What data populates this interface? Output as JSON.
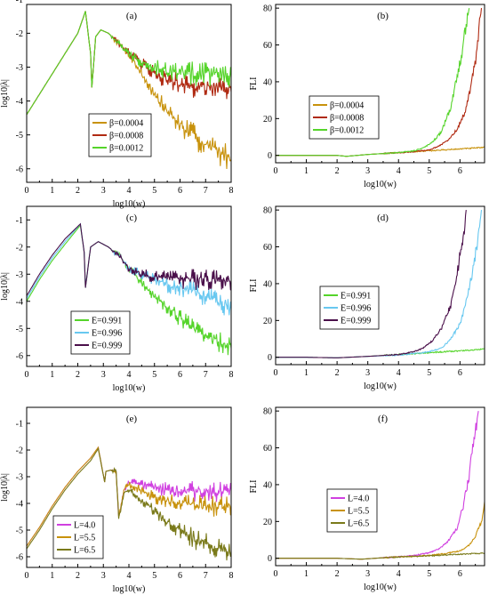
{
  "chart_data": [
    {
      "type": "line",
      "panel_label": "(a)",
      "xlabel": "log10(w)",
      "ylabel": "log10|λ|",
      "xlim": [
        0,
        8
      ],
      "ylim": [
        -6.4,
        -1.15
      ],
      "xticks": [
        "0",
        "1",
        "2",
        "3",
        "4",
        "5",
        "6",
        "7",
        "8"
      ],
      "yticks": [
        "-1",
        "-2",
        "-3",
        "-4",
        "-5",
        "-6"
      ],
      "legend_position": "bottom-center",
      "series": [
        {
          "name": "β=0.0004",
          "color": "#c8920c",
          "x": [
            0,
            0.5,
            1,
            1.5,
            2,
            2.3,
            2.5,
            2.55,
            2.7,
            2.9,
            3.2,
            3.6,
            4,
            4.5,
            5,
            5.5,
            6,
            6.5,
            7,
            7.5,
            8
          ],
          "y": [
            -4.4,
            -3.8,
            -3.2,
            -2.6,
            -2,
            -1.35,
            -2.6,
            -3.6,
            -2.1,
            -1.9,
            -2,
            -2.3,
            -2.6,
            -3.2,
            -3.8,
            -4.3,
            -4.7,
            -5,
            -5.3,
            -5.5,
            -5.7
          ]
        },
        {
          "name": "β=0.0008",
          "color": "#b02a12",
          "x": [
            0,
            0.5,
            1,
            1.5,
            2,
            2.3,
            2.5,
            2.55,
            2.7,
            2.9,
            3.2,
            3.6,
            4,
            4.5,
            5,
            5.5,
            6,
            6.5,
            7,
            7.5,
            8
          ],
          "y": [
            -4.4,
            -3.8,
            -3.2,
            -2.6,
            -2,
            -1.35,
            -2.6,
            -3.6,
            -2.1,
            -1.9,
            -2,
            -2.3,
            -2.6,
            -2.9,
            -3.2,
            -3.4,
            -3.5,
            -3.55,
            -3.6,
            -3.62,
            -3.65
          ]
        },
        {
          "name": "β=0.0012",
          "color": "#55d42a",
          "x": [
            0,
            0.5,
            1,
            1.5,
            2,
            2.3,
            2.5,
            2.55,
            2.7,
            2.9,
            3.2,
            3.6,
            4,
            4.5,
            5,
            5.5,
            6,
            6.5,
            7,
            7.5,
            8
          ],
          "y": [
            -4.4,
            -3.8,
            -3.2,
            -2.6,
            -2,
            -1.35,
            -2.6,
            -3.6,
            -2.1,
            -1.9,
            -2,
            -2.3,
            -2.6,
            -2.85,
            -3,
            -3.1,
            -3.15,
            -3.18,
            -3.2,
            -3.22,
            -3.22
          ]
        }
      ]
    },
    {
      "type": "line",
      "panel_label": "(b)",
      "xlabel": "log10(w)",
      "ylabel": "FLI",
      "xlim": [
        0,
        6.8
      ],
      "ylim": [
        -4,
        82
      ],
      "xticks": [
        "0",
        "1",
        "2",
        "3",
        "4",
        "5",
        "6"
      ],
      "yticks": [
        "0",
        "20",
        "40",
        "60",
        "80"
      ],
      "legend_position": "center-left",
      "series": [
        {
          "name": "β=0.0004",
          "color": "#c8920c",
          "x": [
            0,
            1,
            2,
            2.3,
            3,
            4,
            5,
            5.5,
            6,
            6.5,
            6.8
          ],
          "y": [
            0,
            0,
            0,
            -0.5,
            0.5,
            1.5,
            2.5,
            3,
            3.5,
            4,
            4.5
          ]
        },
        {
          "name": "β=0.0008",
          "color": "#b02a12",
          "x": [
            0,
            1,
            2,
            2.3,
            3,
            4,
            4.5,
            5,
            5.3,
            5.6,
            5.9,
            6.2,
            6.5,
            6.7
          ],
          "y": [
            0,
            0,
            0,
            -0.5,
            0.5,
            1.5,
            2,
            3,
            5,
            8,
            14,
            25,
            50,
            80
          ]
        },
        {
          "name": "β=0.0012",
          "color": "#55d42a",
          "x": [
            0,
            1,
            2,
            2.3,
            3,
            4,
            4.5,
            4.8,
            5.1,
            5.4,
            5.7,
            6,
            6.3
          ],
          "y": [
            0,
            0,
            0,
            -0.5,
            0.5,
            1.5,
            2.5,
            4,
            7,
            13,
            26,
            50,
            80
          ]
        }
      ]
    },
    {
      "type": "line",
      "panel_label": "(c)",
      "xlabel": "log10(w)",
      "ylabel": "log10|λ|",
      "xlim": [
        0,
        8
      ],
      "ylim": [
        -6.4,
        -0.5
      ],
      "xticks": [
        "0",
        "1",
        "2",
        "3",
        "4",
        "5",
        "6",
        "7",
        "8"
      ],
      "yticks": [
        "-1",
        "-2",
        "-3",
        "-4",
        "-5",
        "-6"
      ],
      "legend_position": "bottom-center",
      "series": [
        {
          "name": "E=0.991",
          "color": "#55d42a",
          "x": [
            0,
            0.5,
            1,
            1.5,
            2.1,
            2.25,
            2.3,
            2.5,
            2.8,
            3.2,
            3.7,
            4,
            4.5,
            5,
            5.5,
            6,
            6.5,
            7,
            7.5,
            8
          ],
          "y": [
            -4,
            -3.2,
            -2.5,
            -1.9,
            -1.2,
            -2.2,
            -3.5,
            -2,
            -1.8,
            -2,
            -2.4,
            -2.8,
            -3.3,
            -3.8,
            -4.2,
            -4.6,
            -5,
            -5.3,
            -5.5,
            -5.7
          ]
        },
        {
          "name": "E=0.996",
          "color": "#68c8f0",
          "x": [
            0,
            0.5,
            1,
            1.5,
            2.1,
            2.25,
            2.3,
            2.5,
            2.8,
            3.2,
            3.7,
            4,
            4.5,
            5,
            5.5,
            6,
            6.5,
            7,
            7.5,
            8
          ],
          "y": [
            -3.9,
            -3.1,
            -2.4,
            -1.8,
            -1.15,
            -2.2,
            -3.5,
            -2,
            -1.8,
            -2,
            -2.4,
            -2.8,
            -3,
            -3.2,
            -3.4,
            -3.5,
            -3.6,
            -3.8,
            -4,
            -4.3
          ]
        },
        {
          "name": "E=0.999",
          "color": "#4a0f4a",
          "x": [
            0,
            0.5,
            1,
            1.5,
            2.1,
            2.25,
            2.3,
            2.5,
            2.8,
            3.2,
            3.7,
            4,
            4.5,
            5,
            5.5,
            6,
            6.5,
            7,
            7.5,
            8
          ],
          "y": [
            -3.8,
            -3,
            -2.3,
            -1.7,
            -1.15,
            -2.2,
            -3.5,
            -2,
            -1.8,
            -2,
            -2.4,
            -2.8,
            -3,
            -3.1,
            -3.15,
            -3.2,
            -3.2,
            -3.2,
            -3.2,
            -3.2
          ]
        }
      ]
    },
    {
      "type": "line",
      "panel_label": "(d)",
      "xlabel": "log10(w)",
      "ylabel": "FLI",
      "xlim": [
        0,
        6.8
      ],
      "ylim": [
        -4,
        82
      ],
      "xticks": [
        "0",
        "1",
        "2",
        "3",
        "4",
        "5",
        "6"
      ],
      "yticks": [
        "0",
        "20",
        "40",
        "60",
        "80"
      ],
      "legend_position": "center-left",
      "series": [
        {
          "name": "E=0.991",
          "color": "#55d42a",
          "x": [
            0,
            1,
            2,
            3,
            4,
            5,
            5.5,
            6,
            6.5,
            6.8
          ],
          "y": [
            0,
            0,
            -0.3,
            0.5,
            1.5,
            2.5,
            3,
            3.5,
            4,
            4.5
          ]
        },
        {
          "name": "E=0.996",
          "color": "#68c8f0",
          "x": [
            0,
            1,
            2,
            3,
            4,
            4.5,
            5,
            5.4,
            5.7,
            6,
            6.2,
            6.4,
            6.6,
            6.7
          ],
          "y": [
            0,
            0,
            -0.3,
            0.5,
            1.2,
            2,
            3,
            5,
            10,
            18,
            30,
            45,
            65,
            80
          ]
        },
        {
          "name": "E=0.999",
          "color": "#4a0f4a",
          "x": [
            0,
            1,
            2,
            3,
            4,
            4.5,
            4.8,
            5.1,
            5.4,
            5.7,
            5.9,
            6.1,
            6.2
          ],
          "y": [
            0,
            0,
            -0.3,
            0.5,
            1.5,
            3,
            5,
            9,
            16,
            28,
            45,
            65,
            80
          ]
        }
      ]
    },
    {
      "type": "line",
      "panel_label": "(e)",
      "xlabel": "log10(w)",
      "ylabel": "log10|λ|",
      "xlim": [
        0,
        8
      ],
      "ylim": [
        -6.4,
        -0.4
      ],
      "xticks": [
        "0",
        "1",
        "2",
        "3",
        "4",
        "5",
        "6",
        "7",
        "8"
      ],
      "yticks": [
        "-1",
        "-2",
        "-3",
        "-4",
        "-5",
        "-6"
      ],
      "legend_position": "bottom-left",
      "series": [
        {
          "name": "L=4.0",
          "color": "#d040e0",
          "x": [
            0,
            0.5,
            1,
            1.5,
            2,
            2.5,
            2.8,
            3.05,
            3.1,
            3.3,
            3.5,
            3.6,
            3.8,
            4,
            4.5,
            5,
            5.5,
            6,
            6.5,
            7,
            7.5,
            8
          ],
          "y": [
            -5.6,
            -4.9,
            -4.1,
            -3.4,
            -2.8,
            -2.3,
            -1.9,
            -3.2,
            -2.8,
            -2.75,
            -2.8,
            -4.5,
            -3.5,
            -3.2,
            -3.3,
            -3.4,
            -3.5,
            -3.55,
            -3.55,
            -3.55,
            -3.55,
            -3.55
          ]
        },
        {
          "name": "L=5.5",
          "color": "#c8920c",
          "x": [
            0,
            0.5,
            1,
            1.5,
            2,
            2.5,
            2.8,
            3.05,
            3.1,
            3.3,
            3.5,
            3.6,
            3.8,
            4,
            4.5,
            5,
            5.5,
            6,
            6.5,
            7,
            7.5,
            8
          ],
          "y": [
            -5.6,
            -4.9,
            -4.1,
            -3.4,
            -2.8,
            -2.3,
            -1.9,
            -3.2,
            -2.8,
            -2.75,
            -2.8,
            -4.5,
            -3.5,
            -3.3,
            -3.5,
            -3.8,
            -3.9,
            -4,
            -4,
            -4.1,
            -4.1,
            -4.1
          ]
        },
        {
          "name": "L=6.5",
          "color": "#7a7a1a",
          "x": [
            0,
            0.5,
            1,
            1.5,
            2,
            2.5,
            2.8,
            3.05,
            3.1,
            3.3,
            3.5,
            3.6,
            3.8,
            4,
            4.5,
            5,
            5.5,
            6,
            6.5,
            7,
            7.5,
            8
          ],
          "y": [
            -5.7,
            -5,
            -4.2,
            -3.5,
            -2.9,
            -2.4,
            -1.95,
            -3.2,
            -2.8,
            -2.75,
            -2.8,
            -4.6,
            -3.6,
            -3.5,
            -3.9,
            -4.3,
            -4.7,
            -5,
            -5.3,
            -5.5,
            -5.7,
            -5.8
          ]
        }
      ]
    },
    {
      "type": "line",
      "panel_label": "(f)",
      "xlabel": "log10(w)",
      "ylabel": "FLI",
      "xlim": [
        0,
        6.8
      ],
      "ylim": [
        -4,
        82
      ],
      "xticks": [
        "0",
        "1",
        "2",
        "3",
        "4",
        "5",
        "6"
      ],
      "yticks": [
        "0",
        "20",
        "40",
        "60",
        "80"
      ],
      "legend_position": "center-left",
      "series": [
        {
          "name": "L=4.0",
          "color": "#d040e0",
          "x": [
            0,
            1,
            2,
            2.8,
            3.5,
            4,
            4.5,
            5,
            5.3,
            5.6,
            5.9,
            6.1,
            6.3,
            6.5,
            6.6
          ],
          "y": [
            0,
            0,
            0,
            -0.5,
            0.3,
            0.8,
            1.5,
            3,
            5,
            9,
            16,
            28,
            45,
            70,
            80
          ]
        },
        {
          "name": "L=5.5",
          "color": "#c8920c",
          "x": [
            0,
            1,
            2,
            2.8,
            3.5,
            4,
            5,
            5.5,
            6,
            6.3,
            6.5,
            6.7,
            6.8
          ],
          "y": [
            0,
            0,
            0,
            -0.5,
            0.3,
            0.7,
            1.5,
            2.5,
            4,
            7,
            12,
            20,
            30
          ]
        },
        {
          "name": "L=6.5",
          "color": "#7a7a1a",
          "x": [
            0,
            1,
            2,
            2.8,
            3.5,
            4,
            5,
            5.5,
            6,
            6.5,
            6.8
          ],
          "y": [
            0,
            0,
            0,
            -0.5,
            0.3,
            0.7,
            1.3,
            1.8,
            2.2,
            2.6,
            2.8
          ]
        }
      ]
    }
  ]
}
